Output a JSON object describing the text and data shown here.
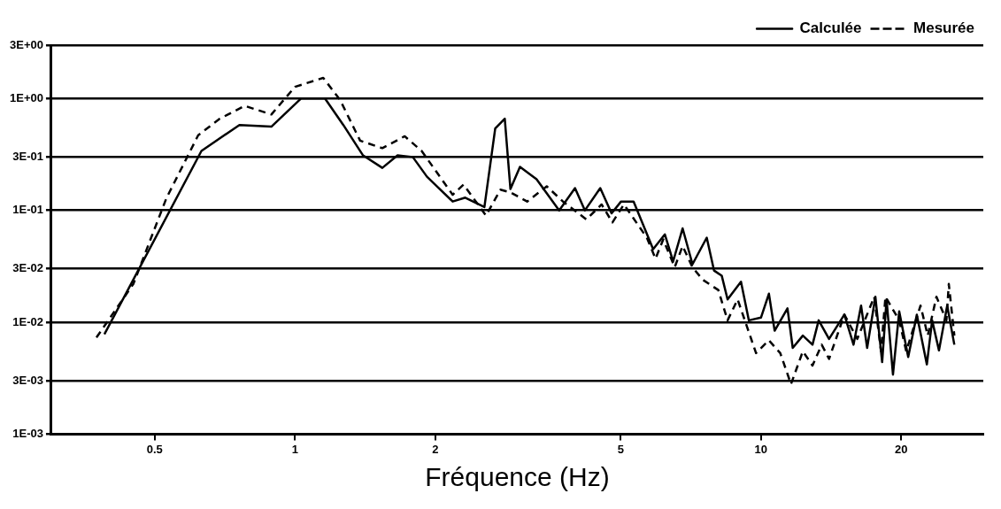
{
  "chart_data": {
    "type": "line",
    "xlabel": "Fréquence (Hz)",
    "log": "xy",
    "grid": "y",
    "legend": "top right",
    "marker": "none",
    "xlim": [
      0.3,
      30
    ],
    "xticks": [
      0.5,
      1,
      2,
      5,
      10,
      20
    ],
    "ylim": [
      0.001,
      3
    ],
    "yticks": [
      {
        "value": 0.001,
        "label": "1E-03"
      },
      {
        "value": 0.003,
        "label": "3E-03"
      },
      {
        "value": 0.01,
        "label": "1E-02"
      },
      {
        "value": 0.03,
        "label": "3E-02"
      },
      {
        "value": 0.1,
        "label": "1E-01"
      },
      {
        "value": 0.3,
        "label": "3E-01"
      },
      {
        "value": 1,
        "label": "1E+00"
      },
      {
        "value": 3,
        "label": "3E+00"
      }
    ],
    "series": [
      {
        "name": "Calculée",
        "color": "#000000",
        "line_style": "solid",
        "x": [
          0.39,
          0.63,
          0.76,
          0.89,
          1.03,
          1.16,
          1.27,
          1.4,
          1.54,
          1.66,
          1.79,
          1.92,
          2.18,
          2.32,
          2.55,
          2.69,
          2.82,
          2.9,
          3.04,
          3.3,
          3.69,
          3.99,
          4.19,
          4.52,
          4.78,
          5.01,
          5.33,
          5.87,
          6.22,
          6.48,
          6.79,
          7.13,
          7.65,
          7.93,
          8.24,
          8.48,
          9.06,
          9.42,
          10,
          10.4,
          10.7,
          11.4,
          11.7,
          12.3,
          12.9,
          13.3,
          14,
          15.1,
          15.8,
          16.4,
          16.9,
          17.6,
          18.2,
          18.6,
          19.2,
          19.8,
          20.7,
          21.6,
          22.7,
          23.3,
          24.1,
          25.1,
          26
        ],
        "values": [
          0.0078,
          0.34,
          0.58,
          0.56,
          1,
          1,
          0.58,
          0.31,
          0.24,
          0.31,
          0.3,
          0.2,
          0.12,
          0.13,
          0.107,
          0.54,
          0.66,
          0.155,
          0.245,
          0.19,
          0.1,
          0.158,
          0.1,
          0.158,
          0.094,
          0.12,
          0.12,
          0.045,
          0.061,
          0.035,
          0.069,
          0.033,
          0.057,
          0.029,
          0.026,
          0.016,
          0.023,
          0.0104,
          0.011,
          0.018,
          0.0084,
          0.0133,
          0.0059,
          0.0076,
          0.0063,
          0.0104,
          0.0071,
          0.0117,
          0.0063,
          0.0141,
          0.0059,
          0.0169,
          0.0044,
          0.016,
          0.0034,
          0.0125,
          0.0049,
          0.0117,
          0.0042,
          0.0104,
          0.0056,
          0.0141,
          0.0063
        ]
      },
      {
        "name": "Mesurée",
        "color": "#000000",
        "line_style": "dashed",
        "x": [
          0.375,
          0.45,
          0.53,
          0.62,
          0.69,
          0.78,
          0.89,
          1,
          1.15,
          1.25,
          1.38,
          1.54,
          1.72,
          1.87,
          2.18,
          2.3,
          2.57,
          2.76,
          2.9,
          3.15,
          3.47,
          3.76,
          4.22,
          4.55,
          4.8,
          5.08,
          5.69,
          5.94,
          6.17,
          6.53,
          6.79,
          7.13,
          7.5,
          8.1,
          8.48,
          8.91,
          9.76,
          10.4,
          11,
          11.6,
          12.3,
          12.9,
          13.5,
          14,
          15.1,
          16.1,
          17.5,
          18.1,
          18.5,
          19.8,
          20.5,
          22,
          22.8,
          23.8,
          25,
          25.3,
          26
        ],
        "values": [
          0.0073,
          0.022,
          0.129,
          0.47,
          0.66,
          0.86,
          0.72,
          1.27,
          1.53,
          0.97,
          0.42,
          0.36,
          0.46,
          0.34,
          0.138,
          0.17,
          0.09,
          0.153,
          0.145,
          0.12,
          0.164,
          0.12,
          0.083,
          0.113,
          0.078,
          0.113,
          0.057,
          0.037,
          0.055,
          0.031,
          0.048,
          0.031,
          0.024,
          0.0194,
          0.0104,
          0.016,
          0.0053,
          0.0069,
          0.0053,
          0.0028,
          0.0055,
          0.0041,
          0.0063,
          0.0047,
          0.0117,
          0.0071,
          0.0169,
          0.0055,
          0.0169,
          0.0104,
          0.0055,
          0.0141,
          0.0076,
          0.0169,
          0.0104,
          0.022,
          0.0076
        ]
      }
    ]
  }
}
